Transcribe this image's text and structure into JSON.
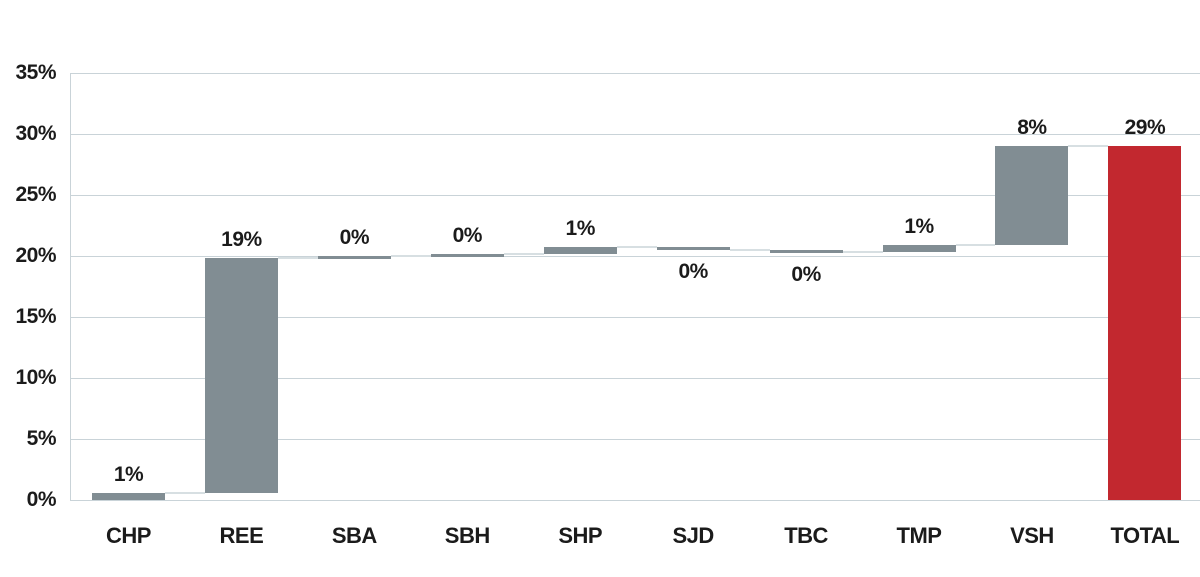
{
  "chart_data": {
    "type": "bar",
    "subtype": "waterfall",
    "title": "",
    "xlabel": "",
    "ylabel": "",
    "categories": [
      "CHP",
      "REE",
      "SBA",
      "SBH",
      "SHP",
      "SJD",
      "TBC",
      "TMP",
      "VSH",
      "TOTAL"
    ],
    "bars": [
      {
        "category": "CHP",
        "start": 0.0,
        "end": 0.6,
        "label": "1%",
        "label_position": "above",
        "role": "step"
      },
      {
        "category": "REE",
        "start": 0.6,
        "end": 19.8,
        "label": "19%",
        "label_position": "above",
        "role": "step"
      },
      {
        "category": "SBA",
        "start": 19.8,
        "end": 20.0,
        "label": "0%",
        "label_position": "above",
        "role": "step"
      },
      {
        "category": "SBH",
        "start": 20.0,
        "end": 20.2,
        "label": "0%",
        "label_position": "above",
        "role": "step"
      },
      {
        "category": "SHP",
        "start": 20.2,
        "end": 20.7,
        "label": "1%",
        "label_position": "above",
        "role": "step"
      },
      {
        "category": "SJD",
        "start": 20.7,
        "end": 20.5,
        "label": "0%",
        "label_position": "below",
        "role": "step"
      },
      {
        "category": "TBC",
        "start": 20.5,
        "end": 20.3,
        "label": "0%",
        "label_position": "below",
        "role": "step"
      },
      {
        "category": "TMP",
        "start": 20.3,
        "end": 20.9,
        "label": "1%",
        "label_position": "above",
        "role": "step"
      },
      {
        "category": "VSH",
        "start": 20.9,
        "end": 29.0,
        "label": "8%",
        "label_position": "above",
        "role": "step"
      },
      {
        "category": "TOTAL",
        "start": 0.0,
        "end": 29.0,
        "label": "29%",
        "label_position": "above",
        "role": "total"
      }
    ],
    "y_axis": {
      "min": 0,
      "max": 35,
      "step": 5,
      "tick_labels": [
        "0%",
        "5%",
        "10%",
        "15%",
        "20%",
        "25%",
        "30%",
        "35%"
      ]
    },
    "grid": true,
    "legend": null,
    "colors": {
      "step_bar": "#818d93",
      "total_bar": "#c2282f",
      "connector": "#d7dfe2",
      "gridline": "#c9d3d8",
      "axis_line": "#c9d3d8",
      "label_text": "#1b1b1b",
      "background": "#ffffff"
    }
  }
}
